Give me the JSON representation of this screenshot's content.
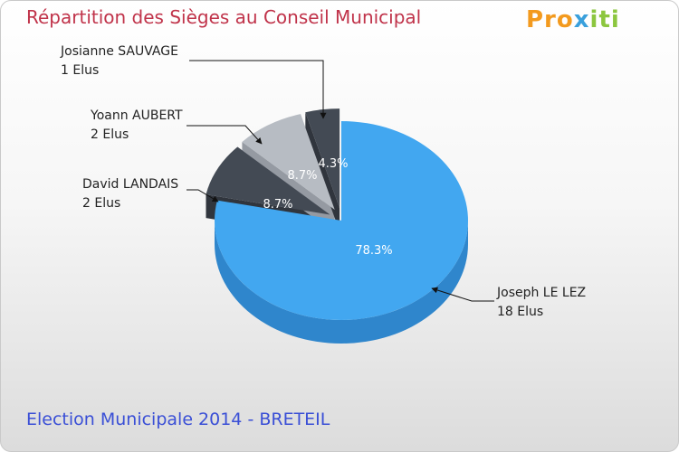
{
  "header": {
    "title": "Répartition des Sièges au Conseil Municipal"
  },
  "footer": {
    "subtitle": "Election Municipale 2014 - BRETEIL"
  },
  "logo": {
    "part1": "Pro",
    "part2": "x",
    "part3": "iti"
  },
  "chart_data": {
    "type": "pie",
    "title": "Répartition des Sièges au Conseil Municipal",
    "subtitle": "Election Municipale 2014 - BRETEIL",
    "slices": [
      {
        "name": "Joseph LE LEZ",
        "seats_label": "18 Elus",
        "seats": 18,
        "percent": 78.3,
        "percent_label": "78.3%",
        "color": "#42a7f0",
        "side_color": "#2f86cc"
      },
      {
        "name": "David LANDAIS",
        "seats_label": "2 Elus",
        "seats": 2,
        "percent": 8.7,
        "percent_label": "8.7%",
        "color": "#434a54",
        "side_color": "#30353d"
      },
      {
        "name": "Yoann AUBERT",
        "seats_label": "2 Elus",
        "seats": 2,
        "percent": 8.7,
        "percent_label": "8.7%",
        "color": "#b7bcc3",
        "side_color": "#959aa2"
      },
      {
        "name": "Josianne SAUVAGE",
        "seats_label": "1 Elus",
        "seats": 1,
        "percent": 4.3,
        "percent_label": "4.3%",
        "color": "#434a54",
        "side_color": "#30353d"
      }
    ]
  }
}
